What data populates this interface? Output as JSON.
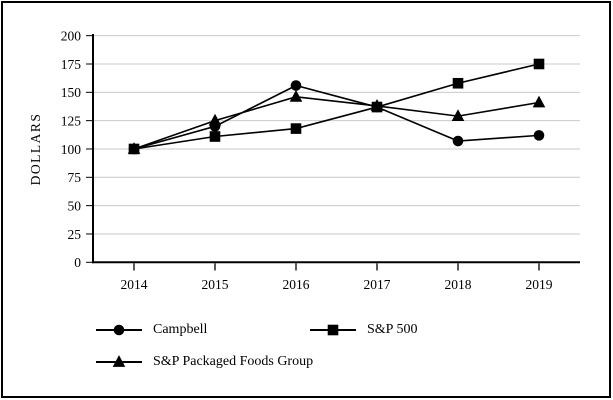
{
  "window": {
    "background_color": "#ffffff",
    "frame_border_color": "#000000"
  },
  "chart_data": {
    "type": "line",
    "title": "",
    "xlabel": "",
    "ylabel": "DOLLARS",
    "x": [
      "2014",
      "2015",
      "2016",
      "2017",
      "2018",
      "2019"
    ],
    "ylim": [
      0,
      200
    ],
    "y_ticks": [
      0,
      25,
      50,
      75,
      100,
      125,
      150,
      175,
      200
    ],
    "grid": "horizontal",
    "gridline_color": "#c9c9c9",
    "axis_color": "#000000",
    "series_color": "#000000",
    "legend_position": "bottom",
    "series": [
      {
        "name": "Campbell",
        "marker": "circle",
        "values": [
          100,
          120,
          156,
          137,
          107,
          112
        ]
      },
      {
        "name": "S&P 500",
        "marker": "square",
        "values": [
          100,
          111,
          118,
          137,
          158,
          175
        ]
      },
      {
        "name": "S&P Packaged Foods Group",
        "marker": "triangle",
        "values": [
          100,
          125,
          146,
          138,
          129,
          141
        ]
      }
    ]
  },
  "legend": {
    "items": [
      {
        "label": "Campbell",
        "marker": "circle"
      },
      {
        "label": "S&P 500",
        "marker": "square"
      },
      {
        "label": "S&P Packaged Foods Group",
        "marker": "triangle"
      }
    ]
  }
}
